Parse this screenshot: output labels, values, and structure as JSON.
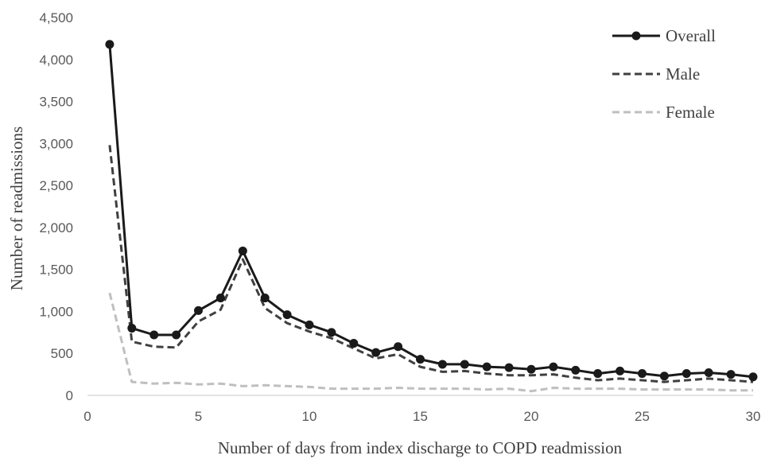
{
  "chart_data": {
    "type": "line",
    "xlabel": "Number of days from index discharge to COPD readmission",
    "ylabel": "Number of readmissions",
    "xlim": [
      0,
      30
    ],
    "ylim": [
      0,
      4500
    ],
    "x_ticks": [
      "0",
      "5",
      "10",
      "15",
      "20",
      "25",
      "30"
    ],
    "y_ticks": [
      "0",
      "500",
      "1,000",
      "1,500",
      "2,000",
      "2,500",
      "3,000",
      "3,500",
      "4,000",
      "4,500"
    ],
    "grid": false,
    "legend_position": "top-right",
    "x": [
      1,
      2,
      3,
      4,
      5,
      6,
      7,
      8,
      9,
      10,
      11,
      12,
      13,
      14,
      15,
      16,
      17,
      18,
      19,
      20,
      21,
      22,
      23,
      24,
      25,
      26,
      27,
      28,
      29,
      30
    ],
    "series": [
      {
        "name": "Overall",
        "style": "solid-marker",
        "color": "#1a1a1a",
        "values": [
          4180,
          800,
          720,
          720,
          1010,
          1160,
          1720,
          1160,
          960,
          840,
          750,
          620,
          510,
          580,
          430,
          370,
          370,
          340,
          330,
          310,
          340,
          300,
          260,
          290,
          260,
          230,
          260,
          270,
          250,
          220
        ]
      },
      {
        "name": "Male",
        "style": "dashed",
        "color": "#404040",
        "values": [
          2980,
          640,
          580,
          570,
          880,
          1020,
          1620,
          1040,
          860,
          760,
          680,
          560,
          440,
          490,
          340,
          280,
          290,
          260,
          240,
          240,
          250,
          210,
          180,
          200,
          180,
          160,
          180,
          200,
          180,
          160
        ]
      },
      {
        "name": "Female",
        "style": "dashed",
        "color": "#bfbfbf",
        "values": [
          1220,
          160,
          140,
          150,
          130,
          140,
          110,
          120,
          110,
          100,
          80,
          80,
          80,
          90,
          80,
          80,
          80,
          70,
          80,
          50,
          90,
          80,
          80,
          80,
          70,
          70,
          70,
          70,
          60,
          60
        ]
      }
    ]
  }
}
